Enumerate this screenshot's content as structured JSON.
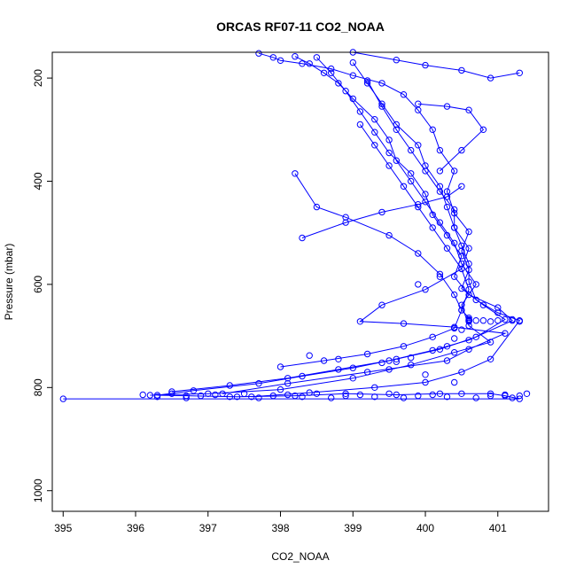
{
  "chart_data": {
    "type": "scatter",
    "title": "ORCAS RF07-11 CO2_NOAA",
    "xlabel": "CO2_NOAA",
    "ylabel": "Pressure (mbar)",
    "xlim": [
      394.85,
      401.7
    ],
    "ylim": [
      1040,
      150
    ],
    "y_reversed": true,
    "x_ticks": [
      395,
      396,
      397,
      398,
      399,
      400,
      401
    ],
    "y_ticks": [
      200,
      400,
      600,
      800,
      1000
    ],
    "grid": false,
    "legend": "none",
    "colors": {
      "series": "#0000ff",
      "axis": "#000000"
    },
    "series": [
      {
        "style": "lines+points",
        "x": [
          395.0,
          401.3,
          401.1,
          400.9,
          400.2,
          399.6,
          398.9,
          398.2,
          397.4,
          396.7,
          396.3,
          396.8,
          397.7,
          398.3,
          399.0,
          399.6,
          400.2,
          400.7,
          401.1,
          400.8,
          400.5,
          400.6,
          400.5,
          400.6,
          400.4,
          400.3,
          400.4,
          400.2,
          400.1,
          399.9,
          399.7,
          399.4,
          399.0,
          398.7,
          398.3,
          398.0,
          397.9,
          397.7
        ],
        "y": [
          822,
          822,
          816,
          812,
          812,
          814,
          812,
          816,
          818,
          816,
          815,
          806,
          792,
          778,
          762,
          745,
          726,
          702,
          668,
          640,
          608,
          572,
          535,
          498,
          462,
          420,
          380,
          340,
          300,
          262,
          232,
          210,
          195,
          182,
          172,
          166,
          160,
          152
        ]
      },
      {
        "style": "lines+points",
        "x": [
          396.2,
          397.0,
          398.0,
          399.0,
          399.8,
          400.4,
          400.9,
          400.6,
          400.5,
          400.7,
          400.5,
          400.4,
          400.2,
          400.0,
          399.8,
          399.6,
          399.5,
          399.3,
          399.0,
          398.8,
          398.6,
          398.4,
          398.2
        ],
        "y": [
          815,
          812,
          804,
          782,
          756,
          732,
          712,
          680,
          640,
          600,
          560,
          520,
          480,
          440,
          400,
          360,
          320,
          280,
          240,
          210,
          190,
          172,
          158
        ]
      },
      {
        "style": "lines+points",
        "x": [
          396.5,
          397.3,
          398.1,
          398.8,
          399.5,
          400.1,
          400.6,
          401.2,
          401.0,
          400.6,
          400.4,
          400.5,
          400.3,
          400.1,
          400.0,
          399.8,
          399.5,
          399.3,
          399.1,
          398.9,
          398.7,
          398.5
        ],
        "y": [
          808,
          796,
          782,
          765,
          748,
          728,
          708,
          670,
          645,
          620,
          585,
          545,
          505,
          465,
          425,
          385,
          345,
          305,
          265,
          225,
          190,
          160
        ]
      },
      {
        "style": "lines+points",
        "x": [
          397.2,
          398.1,
          399.2,
          400.3,
          400.6,
          401.1,
          400.4,
          399.7,
          399.1,
          399.4,
          400.0,
          400.5,
          400.6,
          400.4,
          400.3,
          400.2,
          400.0,
          399.9,
          399.6,
          399.4,
          399.2,
          399.0
        ],
        "y": [
          812,
          792,
          770,
          748,
          726,
          695,
          683,
          676,
          672,
          640,
          610,
          570,
          530,
          490,
          450,
          410,
          370,
          330,
          290,
          250,
          210,
          170
        ]
      },
      {
        "style": "lines+points",
        "x": [
          397.6,
          398.4,
          399.3,
          400.0,
          400.5,
          400.9,
          401.3,
          401.0,
          400.7,
          400.6,
          400.6,
          400.5,
          400.4,
          400.4,
          400.2,
          400.0,
          399.8,
          399.6,
          399.4,
          399.2
        ],
        "y": [
          818,
          810,
          800,
          790,
          770,
          745,
          670,
          655,
          630,
          595,
          560,
          525,
          490,
          455,
          420,
          380,
          340,
          300,
          255,
          205
        ]
      },
      {
        "style": "lines+points",
        "x": [
          398.0,
          398.6,
          399.2,
          399.7,
          400.1,
          400.4,
          400.5,
          400.6,
          400.5,
          400.3,
          400.1,
          399.9,
          399.7,
          399.5,
          399.3,
          399.1
        ],
        "y": [
          760,
          748,
          735,
          720,
          702,
          685,
          650,
          610,
          570,
          530,
          490,
          450,
          410,
          370,
          330,
          290
        ]
      },
      {
        "style": "lines+points",
        "x": [
          398.2,
          398.5,
          398.9,
          399.5,
          399.9,
          400.2,
          400.4,
          400.5,
          400.6,
          400.6
        ],
        "y": [
          385,
          450,
          470,
          505,
          540,
          580,
          620,
          650,
          665,
          670
        ]
      },
      {
        "style": "lines+points",
        "x": [
          398.3,
          398.9,
          399.4,
          399.9,
          400.3,
          400.5
        ],
        "y": [
          510,
          480,
          460,
          445,
          430,
          410
        ]
      },
      {
        "style": "lines+points",
        "x": [
          399.0,
          399.6,
          400.0,
          400.5,
          400.9,
          401.3
        ],
        "y": [
          150,
          165,
          175,
          185,
          200,
          190
        ]
      },
      {
        "style": "lines+points",
        "x": [
          399.9,
          400.3,
          400.6,
          400.8,
          400.5,
          400.2
        ],
        "y": [
          250,
          255,
          262,
          300,
          340,
          380
        ]
      },
      {
        "style": "points",
        "x": [
          396.1,
          396.3,
          396.5,
          396.7,
          396.9,
          397.1,
          397.3,
          397.5,
          397.7,
          397.9,
          398.1,
          398.3,
          398.5,
          398.7,
          398.9,
          399.1,
          399.3,
          399.5,
          399.7,
          399.9,
          400.1,
          400.3,
          400.5,
          400.7,
          400.9,
          401.1,
          401.2,
          401.3,
          401.4,
          400.6,
          400.6,
          400.6,
          400.6,
          400.6,
          400.7,
          400.8,
          400.9,
          401.0,
          401.2,
          401.3,
          400.5,
          400.4,
          400.3,
          399.8,
          399.6,
          399.4,
          398.4,
          398.8,
          399.5,
          400.0,
          400.4,
          400.2,
          399.9
        ],
        "y": [
          814,
          818,
          812,
          820,
          816,
          814,
          818,
          812,
          820,
          816,
          814,
          818,
          812,
          820,
          816,
          814,
          818,
          812,
          820,
          816,
          814,
          818,
          812,
          820,
          816,
          814,
          820,
          816,
          812,
          670,
          672,
          668,
          671,
          669,
          670,
          670,
          672,
          670,
          668,
          672,
          688,
          705,
          720,
          742,
          750,
          752,
          738,
          745,
          765,
          775,
          790,
          585,
          600
        ]
      }
    ]
  }
}
